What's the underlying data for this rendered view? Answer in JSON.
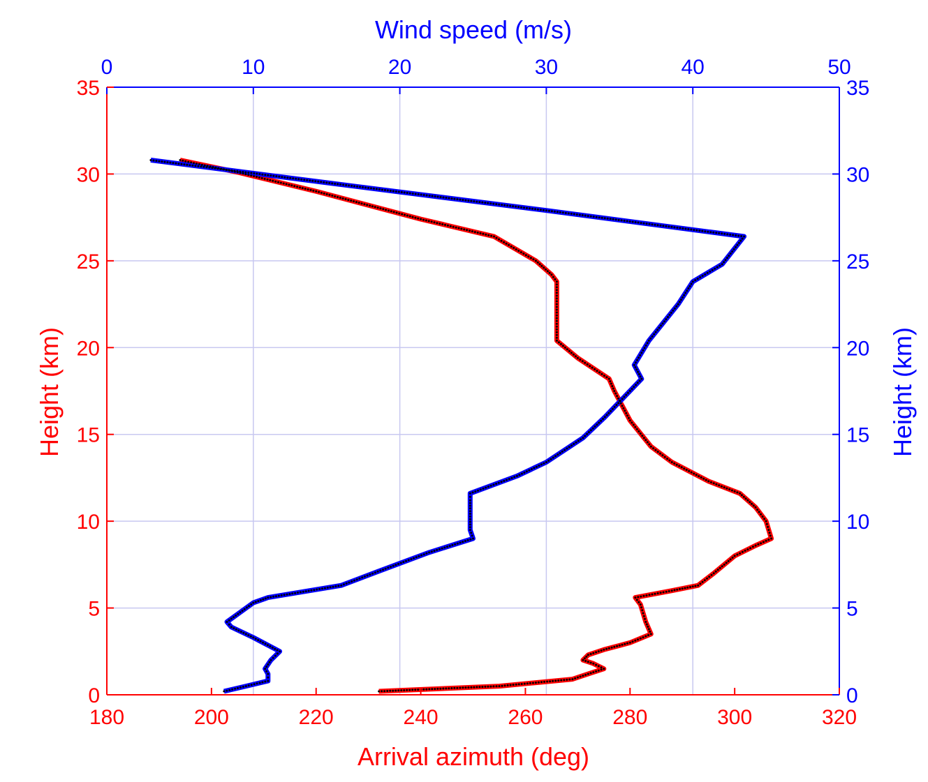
{
  "chart_data": {
    "type": "line",
    "xlabel_bottom": "Arrival azimuth (deg)",
    "xlabel_top": "Wind speed (m/s)",
    "ylabel_left": "Height (km)",
    "ylabel_right": "Height (km)",
    "xlim_bottom": [
      180,
      320
    ],
    "xlim_top": [
      0,
      50
    ],
    "ylim": [
      0,
      35
    ],
    "xticks_bottom": [
      "180",
      "200",
      "220",
      "240",
      "260",
      "280",
      "300",
      "320"
    ],
    "xticks_top": [
      "0",
      "10",
      "20",
      "30",
      "40",
      "50"
    ],
    "yticks": [
      "0",
      "5",
      "10",
      "15",
      "20",
      "25",
      "30",
      "35"
    ],
    "grid": true,
    "colors": {
      "azimuth": "#ff0000",
      "wind": "#0000ff",
      "model": "#000000",
      "grid": "#c8c8f0"
    },
    "series": [
      {
        "name": "Arrival azimuth",
        "axis": "bottom",
        "color": "#ff0000",
        "style": "solid",
        "points": [
          [
            232,
            0.2
          ],
          [
            255,
            0.5
          ],
          [
            262,
            0.7
          ],
          [
            269,
            0.9
          ],
          [
            272,
            1.2
          ],
          [
            275,
            1.5
          ],
          [
            273,
            1.8
          ],
          [
            271,
            2.0
          ],
          [
            272,
            2.3
          ],
          [
            275,
            2.6
          ],
          [
            280,
            3.0
          ],
          [
            284,
            3.5
          ],
          [
            283,
            4.2
          ],
          [
            282,
            5.2
          ],
          [
            281,
            5.6
          ],
          [
            288,
            6.0
          ],
          [
            293,
            6.3
          ],
          [
            296,
            7.0
          ],
          [
            300,
            8.0
          ],
          [
            304,
            8.6
          ],
          [
            307,
            9.0
          ],
          [
            306,
            10.0
          ],
          [
            304,
            10.8
          ],
          [
            301,
            11.6
          ],
          [
            295,
            12.3
          ],
          [
            288,
            13.4
          ],
          [
            284,
            14.3
          ],
          [
            280,
            15.8
          ],
          [
            277,
            17.5
          ],
          [
            276,
            18.2
          ],
          [
            270,
            19.4
          ],
          [
            266,
            20.4
          ],
          [
            266,
            23.8
          ],
          [
            265,
            24.2
          ],
          [
            262,
            25.0
          ],
          [
            254,
            26.4
          ],
          [
            240,
            27.4
          ],
          [
            220,
            29.0
          ],
          [
            205,
            30.1
          ],
          [
            194,
            30.8
          ]
        ]
      },
      {
        "name": "Wind speed",
        "axis": "top",
        "color": "#0000ff",
        "style": "solid",
        "points": [
          [
            8,
            0.2
          ],
          [
            9.5,
            0.5
          ],
          [
            11,
            0.8
          ],
          [
            11,
            1.2
          ],
          [
            10.8,
            1.5
          ],
          [
            11.2,
            2.0
          ],
          [
            11.8,
            2.5
          ],
          [
            10,
            3.3
          ],
          [
            8.5,
            3.9
          ],
          [
            8.2,
            4.2
          ],
          [
            10,
            5.3
          ],
          [
            11,
            5.6
          ],
          [
            16,
            6.3
          ],
          [
            18.5,
            7.1
          ],
          [
            22,
            8.2
          ],
          [
            25,
            9.0
          ],
          [
            24.8,
            9.5
          ],
          [
            24.8,
            11.2
          ],
          [
            24.8,
            11.6
          ],
          [
            28,
            12.6
          ],
          [
            30,
            13.4
          ],
          [
            32.5,
            14.8
          ],
          [
            34,
            16.0
          ],
          [
            36.5,
            18.2
          ],
          [
            36,
            19.0
          ],
          [
            37,
            20.4
          ],
          [
            39,
            22.5
          ],
          [
            40,
            23.8
          ],
          [
            42,
            24.8
          ],
          [
            43.5,
            26.4
          ],
          [
            30,
            27.9
          ],
          [
            15,
            29.5
          ],
          [
            3,
            30.8
          ]
        ]
      }
    ]
  }
}
